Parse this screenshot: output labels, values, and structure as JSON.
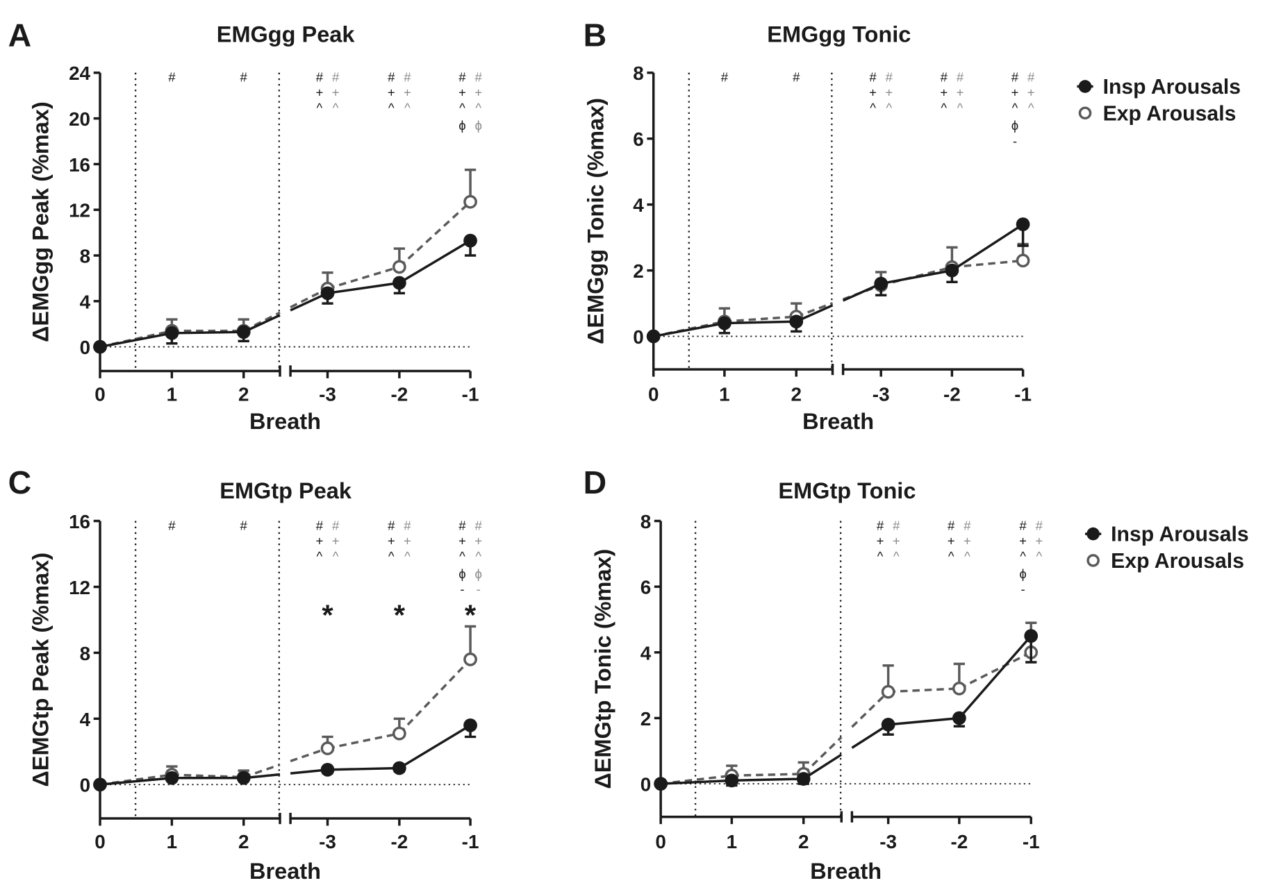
{
  "legend": {
    "insp": "Insp Arousals",
    "exp": "Exp Arousals"
  },
  "colors": {
    "insp": "#1a1a1a",
    "exp": "#5a5a5a",
    "annot_grey": "#8c8c8c"
  },
  "chart_data": [
    {
      "panel": "A",
      "type": "line",
      "title": "EMGgg Peak",
      "xlabel": "Breath",
      "ylabel": "ΔEMGgg Peak (%max)",
      "categories": [
        "0",
        "1",
        "2",
        "-3",
        "-2",
        "-1"
      ],
      "axis_break_after": "2",
      "vertical_dotted_lines_at": [
        0.5,
        2.5
      ],
      "ylim": [
        -2,
        24
      ],
      "yticks": [
        0,
        4,
        8,
        12,
        16,
        20,
        24
      ],
      "legend_shown": false,
      "series": [
        {
          "name": "Insp Arousals",
          "values": [
            0,
            1.2,
            1.3,
            4.7,
            5.6,
            9.3
          ],
          "sem": [
            0,
            0.9,
            0.8,
            0.9,
            0.9,
            1.3
          ],
          "style": "solid-filled"
        },
        {
          "name": "Exp Arousals",
          "values": [
            0,
            1.4,
            1.4,
            5.1,
            7.0,
            12.7
          ],
          "sem": [
            0,
            1.0,
            1.0,
            1.4,
            1.6,
            2.8
          ],
          "style": "dashed-open"
        }
      ],
      "annotations": [
        {
          "black": [],
          "grey": []
        },
        {
          "black": [
            "#"
          ],
          "grey": []
        },
        {
          "black": [
            "#"
          ],
          "grey": []
        },
        {
          "black": [
            "#",
            "+",
            "^"
          ],
          "grey": [
            "#",
            "+",
            "^"
          ]
        },
        {
          "black": [
            "#",
            "+",
            "^"
          ],
          "grey": [
            "#",
            "+",
            "^"
          ]
        },
        {
          "black": [
            "#",
            "+",
            "^",
            "ϕ"
          ],
          "grey": [
            "#",
            "+",
            "^",
            "ϕ"
          ]
        }
      ],
      "stars": []
    },
    {
      "panel": "B",
      "type": "line",
      "title": "EMGgg Tonic",
      "xlabel": "Breath",
      "ylabel": "ΔEMGgg Tonic (%max)",
      "categories": [
        "0",
        "1",
        "2",
        "-3",
        "-2",
        "-1"
      ],
      "axis_break_after": "2",
      "vertical_dotted_lines_at": [
        0.5,
        2.5
      ],
      "ylim": [
        -1,
        8
      ],
      "yticks": [
        0,
        2,
        4,
        6,
        8
      ],
      "legend_shown": true,
      "legend_position": "right",
      "series": [
        {
          "name": "Insp Arousals",
          "values": [
            0,
            0.4,
            0.45,
            1.6,
            2.0,
            3.4
          ],
          "sem": [
            0,
            0.3,
            0.3,
            0.35,
            0.35,
            0.65
          ],
          "style": "solid-filled"
        },
        {
          "name": "Exp Arousals",
          "values": [
            0,
            0.45,
            0.6,
            1.55,
            2.1,
            2.3
          ],
          "sem": [
            0,
            0.4,
            0.4,
            0.4,
            0.6,
            0.5
          ],
          "style": "dashed-open"
        }
      ],
      "annotations": [
        {
          "black": [],
          "grey": []
        },
        {
          "black": [
            "#"
          ],
          "grey": []
        },
        {
          "black": [
            "#"
          ],
          "grey": []
        },
        {
          "black": [
            "#",
            "+",
            "^"
          ],
          "grey": [
            "#",
            "+",
            "^"
          ]
        },
        {
          "black": [
            "#",
            "+",
            "^"
          ],
          "grey": [
            "#",
            "+",
            "^"
          ]
        },
        {
          "black": [
            "#",
            "+",
            "^",
            "ϕ",
            "-"
          ],
          "grey": [
            "#",
            "+",
            "^"
          ]
        }
      ],
      "stars": []
    },
    {
      "panel": "C",
      "type": "line",
      "title": "EMGtp Peak",
      "xlabel": "Breath",
      "ylabel": "ΔEMGtp Peak (%max)",
      "categories": [
        "0",
        "1",
        "2",
        "-3",
        "-2",
        "-1"
      ],
      "axis_break_after": "2",
      "vertical_dotted_lines_at": [
        0.5,
        2.5
      ],
      "ylim": [
        -2,
        16
      ],
      "yticks": [
        0,
        4,
        8,
        12,
        16
      ],
      "legend_shown": false,
      "series": [
        {
          "name": "Insp Arousals",
          "values": [
            0,
            0.4,
            0.4,
            0.9,
            1.0,
            3.6
          ],
          "sem": [
            0,
            0.1,
            0.1,
            0.2,
            0.2,
            0.7
          ],
          "style": "solid-filled"
        },
        {
          "name": "Exp Arousals",
          "values": [
            0,
            0.6,
            0.45,
            2.2,
            3.1,
            7.6
          ],
          "sem": [
            0,
            0.5,
            0.4,
            0.7,
            0.9,
            2.0
          ],
          "style": "dashed-open"
        }
      ],
      "annotations": [
        {
          "black": [],
          "grey": []
        },
        {
          "black": [
            "#"
          ],
          "grey": []
        },
        {
          "black": [
            "#"
          ],
          "grey": []
        },
        {
          "black": [
            "#",
            "+",
            "^"
          ],
          "grey": [
            "#",
            "+",
            "^"
          ]
        },
        {
          "black": [
            "#",
            "+",
            "^"
          ],
          "grey": [
            "#",
            "+",
            "^"
          ]
        },
        {
          "black": [
            "#",
            "+",
            "^",
            "ϕ",
            "-"
          ],
          "grey": [
            "#",
            "+",
            "^",
            "ϕ",
            "-"
          ]
        }
      ],
      "stars": [
        "",
        "",
        "",
        "*",
        "*",
        "*"
      ]
    },
    {
      "panel": "D",
      "type": "line",
      "title": "EMGtp Tonic",
      "xlabel": "Breath",
      "ylabel": "ΔEMGtp Tonic (%max)",
      "categories": [
        "0",
        "1",
        "2",
        "-3",
        "-2",
        "-1"
      ],
      "axis_break_after": "2",
      "vertical_dotted_lines_at": [
        0.5,
        2.5
      ],
      "ylim": [
        -1,
        8
      ],
      "yticks": [
        0,
        2,
        4,
        6,
        8
      ],
      "legend_shown": true,
      "legend_position": "right",
      "series": [
        {
          "name": "Insp Arousals",
          "values": [
            0,
            0.1,
            0.15,
            1.8,
            2.0,
            4.5
          ],
          "sem": [
            0,
            0.15,
            0.15,
            0.3,
            0.25,
            0.8
          ],
          "style": "solid-filled"
        },
        {
          "name": "Exp Arousals",
          "values": [
            0,
            0.25,
            0.3,
            2.8,
            2.9,
            4.0
          ],
          "sem": [
            0,
            0.3,
            0.35,
            0.8,
            0.75,
            0.9
          ],
          "style": "dashed-open"
        }
      ],
      "annotations": [
        {
          "black": [],
          "grey": []
        },
        {
          "black": [],
          "grey": []
        },
        {
          "black": [],
          "grey": []
        },
        {
          "black": [
            "#",
            "+",
            "^"
          ],
          "grey": [
            "#",
            "+",
            "^"
          ]
        },
        {
          "black": [
            "#",
            "+",
            "^"
          ],
          "grey": [
            "#",
            "+",
            "^"
          ]
        },
        {
          "black": [
            "#",
            "+",
            "^",
            "ϕ",
            "-"
          ],
          "grey": [
            "#",
            "+",
            "^"
          ]
        }
      ],
      "stars": []
    }
  ]
}
